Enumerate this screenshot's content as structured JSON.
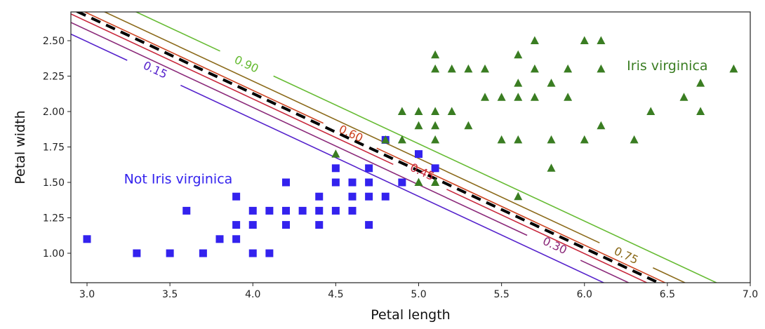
{
  "chart_data": {
    "type": "scatter",
    "title": "",
    "xlabel": "Petal length",
    "ylabel": "Petal width",
    "xlim": [
      2.9,
      7.0
    ],
    "ylim": [
      0.8,
      2.7
    ],
    "xticks": [
      3.0,
      3.5,
      4.0,
      4.5,
      5.0,
      5.5,
      6.0,
      6.5,
      7.0
    ],
    "xtick_labels": [
      "3.0",
      "3.5",
      "4.0",
      "4.5",
      "5.0",
      "5.5",
      "6.0",
      "6.5",
      "7.0"
    ],
    "yticks": [
      1.0,
      1.25,
      1.5,
      1.75,
      2.0,
      2.25,
      2.5
    ],
    "ytick_labels": [
      "1.00",
      "1.25",
      "1.50",
      "1.75",
      "2.00",
      "2.25",
      "2.50"
    ],
    "grid": false,
    "series": [
      {
        "name": "Not Iris virginica",
        "marker": "square",
        "color": "#3322ee",
        "points": [
          [
            3.0,
            1.1
          ],
          [
            3.3,
            1.0
          ],
          [
            3.5,
            1.0
          ],
          [
            3.6,
            1.3
          ],
          [
            3.7,
            1.0
          ],
          [
            3.8,
            1.1
          ],
          [
            3.9,
            1.4
          ],
          [
            3.9,
            1.2
          ],
          [
            3.9,
            1.1
          ],
          [
            4.0,
            1.3
          ],
          [
            4.0,
            1.2
          ],
          [
            4.0,
            1.0
          ],
          [
            4.1,
            1.3
          ],
          [
            4.1,
            1.0
          ],
          [
            4.2,
            1.5
          ],
          [
            4.2,
            1.3
          ],
          [
            4.2,
            1.2
          ],
          [
            4.3,
            1.3
          ],
          [
            4.4,
            1.4
          ],
          [
            4.4,
            1.3
          ],
          [
            4.4,
            1.2
          ],
          [
            4.5,
            1.6
          ],
          [
            4.5,
            1.5
          ],
          [
            4.5,
            1.3
          ],
          [
            4.6,
            1.5
          ],
          [
            4.6,
            1.4
          ],
          [
            4.6,
            1.3
          ],
          [
            4.7,
            1.6
          ],
          [
            4.7,
            1.5
          ],
          [
            4.7,
            1.4
          ],
          [
            4.7,
            1.2
          ],
          [
            4.8,
            1.8
          ],
          [
            4.8,
            1.4
          ],
          [
            4.9,
            1.5
          ],
          [
            5.0,
            1.7
          ],
          [
            5.1,
            1.6
          ]
        ]
      },
      {
        "name": "Iris virginica",
        "marker": "triangle",
        "color": "#3a7d22",
        "points": [
          [
            4.5,
            1.7
          ],
          [
            4.8,
            1.8
          ],
          [
            4.9,
            2.0
          ],
          [
            4.9,
            1.8
          ],
          [
            5.0,
            2.0
          ],
          [
            5.0,
            1.9
          ],
          [
            5.0,
            1.5
          ],
          [
            5.1,
            2.4
          ],
          [
            5.1,
            2.3
          ],
          [
            5.1,
            2.0
          ],
          [
            5.1,
            1.9
          ],
          [
            5.1,
            1.8
          ],
          [
            5.1,
            1.5
          ],
          [
            5.2,
            2.3
          ],
          [
            5.2,
            2.0
          ],
          [
            5.3,
            2.3
          ],
          [
            5.3,
            1.9
          ],
          [
            5.4,
            2.3
          ],
          [
            5.4,
            2.1
          ],
          [
            5.5,
            2.1
          ],
          [
            5.5,
            1.8
          ],
          [
            5.6,
            2.4
          ],
          [
            5.6,
            2.2
          ],
          [
            5.6,
            2.1
          ],
          [
            5.6,
            1.8
          ],
          [
            5.6,
            1.4
          ],
          [
            5.7,
            2.5
          ],
          [
            5.7,
            2.3
          ],
          [
            5.7,
            2.1
          ],
          [
            5.8,
            2.2
          ],
          [
            5.8,
            1.8
          ],
          [
            5.8,
            1.6
          ],
          [
            5.9,
            2.3
          ],
          [
            5.9,
            2.1
          ],
          [
            6.0,
            2.5
          ],
          [
            6.0,
            1.8
          ],
          [
            6.1,
            2.5
          ],
          [
            6.1,
            2.3
          ],
          [
            6.1,
            1.9
          ],
          [
            6.3,
            1.8
          ],
          [
            6.4,
            2.0
          ],
          [
            6.6,
            2.1
          ],
          [
            6.7,
            2.2
          ],
          [
            6.7,
            2.0
          ],
          [
            6.9,
            2.3
          ]
        ]
      }
    ],
    "decision_boundary": {
      "style": "dashed",
      "color": "#000000",
      "probability": 0.5,
      "x_at_bottom": 6.45,
      "slope": -0.546
    },
    "contours": [
      {
        "level": 0.15,
        "label": "0.15",
        "color": "#5522cc",
        "x_at_bottom": 6.12,
        "label_pos": [
          3.41,
          2.29
        ]
      },
      {
        "level": 0.3,
        "label": "0.30",
        "color": "#8b2a7a",
        "x_at_bottom": 6.27,
        "label_pos": [
          5.82,
          1.05
        ]
      },
      {
        "level": 0.45,
        "label": "0.45",
        "color": "#c8283c",
        "x_at_bottom": 6.38,
        "label_pos": [
          5.02,
          1.57
        ]
      },
      {
        "level": 0.6,
        "label": "0.60",
        "color": "#cc4422",
        "x_at_bottom": 6.49,
        "label_pos": [
          4.59,
          1.84
        ]
      },
      {
        "level": 0.75,
        "label": "0.75",
        "color": "#8b6a1a",
        "x_at_bottom": 6.61,
        "label_pos": [
          6.25,
          0.98
        ]
      },
      {
        "level": 0.9,
        "label": "0.90",
        "color": "#66bb33",
        "x_at_bottom": 6.8,
        "label_pos": [
          3.96,
          2.33
        ]
      }
    ],
    "annotations": [
      {
        "text": "Not Iris virginica",
        "x": 3.55,
        "y": 1.52,
        "color": "#3322ee"
      },
      {
        "text": "Iris virginica",
        "x": 6.5,
        "y": 2.32,
        "color": "#3a7d22"
      }
    ]
  }
}
